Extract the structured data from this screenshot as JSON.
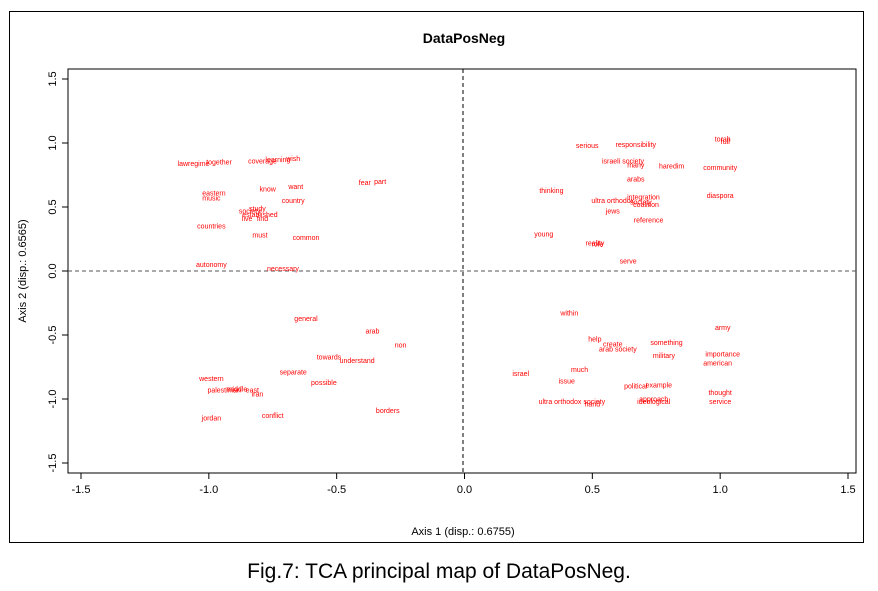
{
  "caption": "Fig.7: TCA principal map of DataPosNeg.",
  "chart_data": {
    "type": "scatter",
    "title": "DataPosNeg",
    "xlabel": "Axis 1 (disp.: 0.6755)",
    "ylabel": "Axis 2 (disp.: 0.6565)",
    "xlim": [
      -1.5,
      1.5
    ],
    "ylim": [
      -1.5,
      1.5
    ],
    "xticks": [
      "-1.5",
      "-1.0",
      "-0.5",
      "0.0",
      "0.5",
      "1.0",
      "1.5"
    ],
    "yticks": [
      "-1.5",
      "-1.0",
      "-0.5",
      "0.0",
      "0.5",
      "1.0",
      "1.5"
    ],
    "color": "#ff0000",
    "reference_lines": "dashed lines at x = 0 and y = 0",
    "points": [
      {
        "label": "lawregime",
        "x": -1.06,
        "y": 0.84
      },
      {
        "label": "together",
        "x": -0.96,
        "y": 0.85
      },
      {
        "label": "coverage",
        "x": -0.79,
        "y": 0.86
      },
      {
        "label": "learning",
        "x": -0.73,
        "y": 0.87
      },
      {
        "label": "wish",
        "x": -0.67,
        "y": 0.88
      },
      {
        "label": "eastern",
        "x": -0.98,
        "y": 0.61
      },
      {
        "label": "music",
        "x": -0.99,
        "y": 0.57
      },
      {
        "label": "know",
        "x": -0.77,
        "y": 0.64
      },
      {
        "label": "want",
        "x": -0.66,
        "y": 0.66
      },
      {
        "label": "fear",
        "x": -0.39,
        "y": 0.69
      },
      {
        "label": "part",
        "x": -0.33,
        "y": 0.7
      },
      {
        "label": "country",
        "x": -0.67,
        "y": 0.55
      },
      {
        "label": "study",
        "x": -0.81,
        "y": 0.49
      },
      {
        "label": "society",
        "x": -0.84,
        "y": 0.47
      },
      {
        "label": "established",
        "x": -0.8,
        "y": 0.44
      },
      {
        "label": "live",
        "x": -0.85,
        "y": 0.41
      },
      {
        "label": "find",
        "x": -0.79,
        "y": 0.41
      },
      {
        "label": "countries",
        "x": -0.99,
        "y": 0.35
      },
      {
        "label": "must",
        "x": -0.8,
        "y": 0.28
      },
      {
        "label": "common",
        "x": -0.62,
        "y": 0.26
      },
      {
        "label": "autonomy",
        "x": -0.99,
        "y": 0.05
      },
      {
        "label": "necessary",
        "x": -0.71,
        "y": 0.02
      },
      {
        "label": "general",
        "x": -0.62,
        "y": -0.37
      },
      {
        "label": "arab",
        "x": -0.36,
        "y": -0.47
      },
      {
        "label": "non",
        "x": -0.25,
        "y": -0.58
      },
      {
        "label": "towards",
        "x": -0.53,
        "y": -0.67
      },
      {
        "label": "understand",
        "x": -0.42,
        "y": -0.7
      },
      {
        "label": "separate",
        "x": -0.67,
        "y": -0.79
      },
      {
        "label": "possible",
        "x": -0.55,
        "y": -0.87
      },
      {
        "label": "western",
        "x": -0.99,
        "y": -0.84
      },
      {
        "label": "palestinian",
        "x": -0.94,
        "y": -0.93
      },
      {
        "label": "middle",
        "x": -0.89,
        "y": -0.92
      },
      {
        "label": "east",
        "x": -0.83,
        "y": -0.93
      },
      {
        "label": "iran",
        "x": -0.81,
        "y": -0.96
      },
      {
        "label": "jordan",
        "x": -0.99,
        "y": -1.15
      },
      {
        "label": "conflict",
        "x": -0.75,
        "y": -1.13
      },
      {
        "label": "borders",
        "x": -0.3,
        "y": -1.09
      },
      {
        "label": "serious",
        "x": 0.48,
        "y": 0.98
      },
      {
        "label": "responsibility",
        "x": 0.67,
        "y": 0.99
      },
      {
        "label": "israeli society",
        "x": 0.62,
        "y": 0.86
      },
      {
        "label": "many",
        "x": 0.67,
        "y": 0.83
      },
      {
        "label": "haredim",
        "x": 0.81,
        "y": 0.82
      },
      {
        "label": "torah",
        "x": 1.01,
        "y": 1.03
      },
      {
        "label": "full",
        "x": 1.02,
        "y": 1.01
      },
      {
        "label": "community",
        "x": 1.0,
        "y": 0.81
      },
      {
        "label": "arabs",
        "x": 0.67,
        "y": 0.72
      },
      {
        "label": "thinking",
        "x": 0.34,
        "y": 0.63
      },
      {
        "label": "integration",
        "x": 0.7,
        "y": 0.58
      },
      {
        "label": "ultra orthodox",
        "x": 0.58,
        "y": 0.55
      },
      {
        "label": "society",
        "x": 0.69,
        "y": 0.54
      },
      {
        "label": "coalition",
        "x": 0.71,
        "y": 0.52
      },
      {
        "label": "jews",
        "x": 0.58,
        "y": 0.47
      },
      {
        "label": "reference",
        "x": 0.72,
        "y": 0.4
      },
      {
        "label": "diaspora",
        "x": 1.0,
        "y": 0.59
      },
      {
        "label": "young",
        "x": 0.31,
        "y": 0.29
      },
      {
        "label": "reality",
        "x": 0.51,
        "y": 0.22
      },
      {
        "label": "role",
        "x": 0.52,
        "y": 0.21
      },
      {
        "label": "serve",
        "x": 0.64,
        "y": 0.08
      },
      {
        "label": "within",
        "x": 0.41,
        "y": -0.33
      },
      {
        "label": "army",
        "x": 1.01,
        "y": -0.44
      },
      {
        "label": "help",
        "x": 0.51,
        "y": -0.53
      },
      {
        "label": "create",
        "x": 0.58,
        "y": -0.57
      },
      {
        "label": "arab society",
        "x": 0.6,
        "y": -0.61
      },
      {
        "label": "something",
        "x": 0.79,
        "y": -0.56
      },
      {
        "label": "military",
        "x": 0.78,
        "y": -0.66
      },
      {
        "label": "importance",
        "x": 1.01,
        "y": -0.65
      },
      {
        "label": "american",
        "x": 0.99,
        "y": -0.72
      },
      {
        "label": "much",
        "x": 0.45,
        "y": -0.77
      },
      {
        "label": "israel",
        "x": 0.22,
        "y": -0.8
      },
      {
        "label": "issue",
        "x": 0.4,
        "y": -0.86
      },
      {
        "label": "political",
        "x": 0.67,
        "y": -0.9
      },
      {
        "label": "example",
        "x": 0.76,
        "y": -0.89
      },
      {
        "label": "thought",
        "x": 1.0,
        "y": -0.95
      },
      {
        "label": "approach",
        "x": 0.74,
        "y": -1.0
      },
      {
        "label": "ideological",
        "x": 0.74,
        "y": -1.02
      },
      {
        "label": "service",
        "x": 1.0,
        "y": -1.02
      },
      {
        "label": "ultra orthodox society",
        "x": 0.42,
        "y": -1.02
      },
      {
        "label": "hand",
        "x": 0.5,
        "y": -1.04
      }
    ]
  }
}
